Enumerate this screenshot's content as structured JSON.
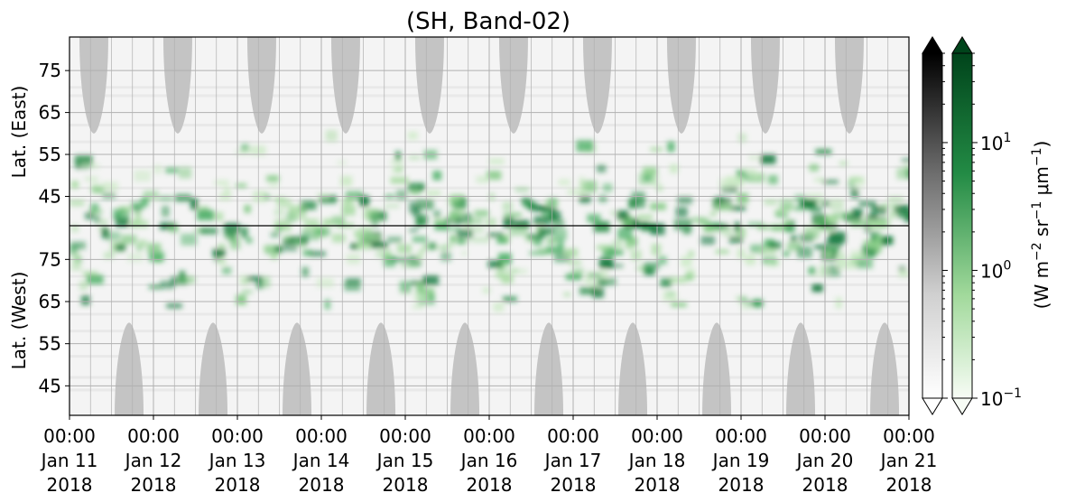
{
  "chart_data": {
    "type": "heatmap",
    "title": "(SH, Band-02)",
    "x_range": [
      "2018-01-11T00:00",
      "2018-01-21T00:00"
    ],
    "x_ticks": [
      {
        "time": "00:00",
        "day": "Jan 11",
        "year": "2018"
      },
      {
        "time": "00:00",
        "day": "Jan 12",
        "year": "2018"
      },
      {
        "time": "00:00",
        "day": "Jan 13",
        "year": "2018"
      },
      {
        "time": "00:00",
        "day": "Jan 14",
        "year": "2018"
      },
      {
        "time": "00:00",
        "day": "Jan 15",
        "year": "2018"
      },
      {
        "time": "00:00",
        "day": "Jan 16",
        "year": "2018"
      },
      {
        "time": "00:00",
        "day": "Jan 17",
        "year": "2018"
      },
      {
        "time": "00:00",
        "day": "Jan 18",
        "year": "2018"
      },
      {
        "time": "00:00",
        "day": "Jan 19",
        "year": "2018"
      },
      {
        "time": "00:00",
        "day": "Jan 20",
        "year": "2018"
      },
      {
        "time": "00:00",
        "day": "Jan 21",
        "year": "2018"
      }
    ],
    "upper_panel": {
      "ylabel": "Lat. (East)",
      "yticks": [
        "45",
        "55",
        "65",
        "75"
      ],
      "ylim": [
        38,
        83
      ]
    },
    "lower_panel": {
      "ylabel": "Lat. (West)",
      "yticks": [
        "75",
        "65",
        "55",
        "45"
      ],
      "ylim": [
        83,
        38
      ]
    },
    "colorbar": {
      "label": "(W m$^{-2}$ sr$^{-1}$ $\\mu$m$^{-1}$)",
      "scale": "log",
      "ticks": [
        "10",
        "10",
        "10"
      ],
      "tick_exponents": [
        "1",
        "0",
        "−1"
      ],
      "tick_values": [
        10,
        1,
        0.1
      ],
      "range": [
        0.1,
        50
      ],
      "colormaps": [
        "Greys",
        "Greens"
      ],
      "extend": "both"
    },
    "grid": true,
    "colors": {
      "grey_mask": "#c4c4c4",
      "green_dark": "#00441b",
      "green_mid": "#41ab5d",
      "green_light": "#e5f5e0",
      "grey_dark": "#000000",
      "grey_light": "#ffffff"
    }
  }
}
